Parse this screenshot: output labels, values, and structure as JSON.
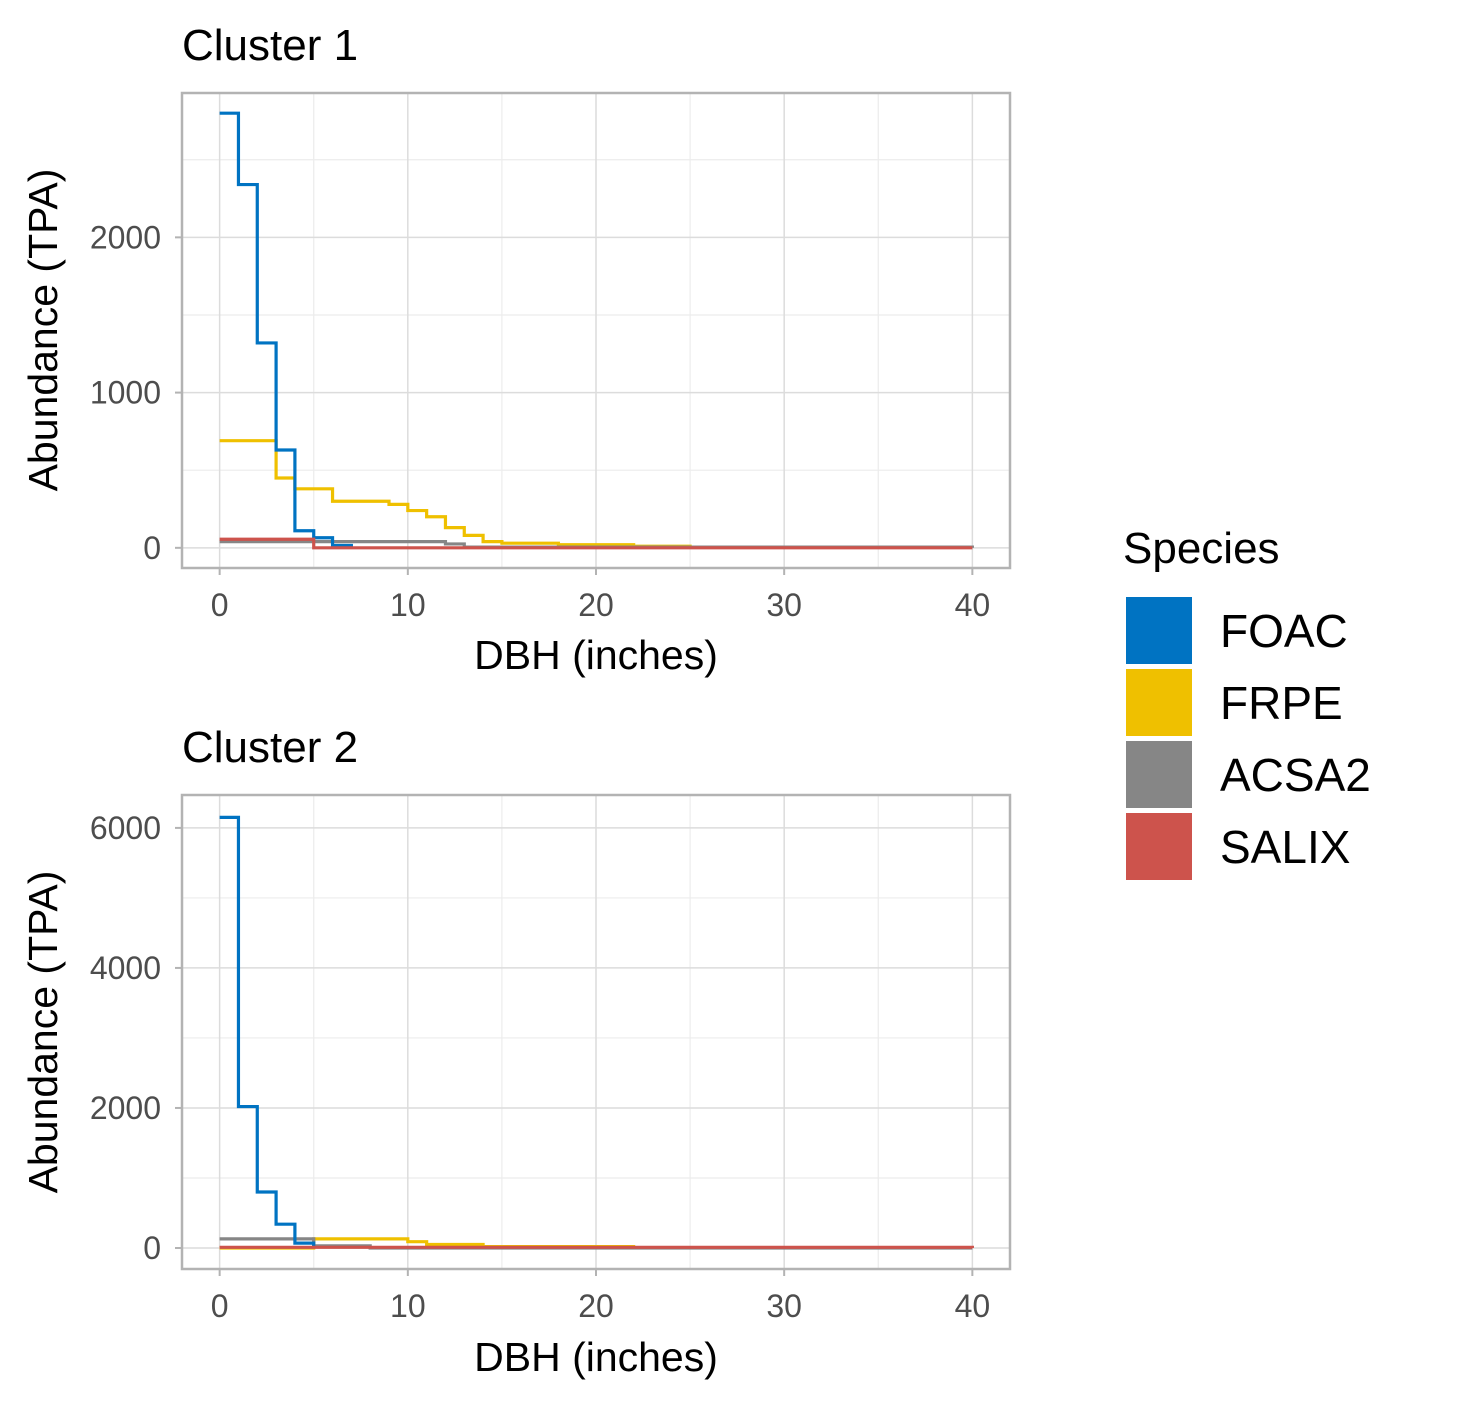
{
  "chart_data": [
    {
      "type": "line",
      "step": true,
      "title": "Cluster 1",
      "xlabel": "DBH (inches)",
      "ylabel": "Abundance (TPA)",
      "xlim": [
        -2,
        42
      ],
      "ylim": [
        -130,
        2930
      ],
      "xticks": [
        0,
        10,
        20,
        30,
        40
      ],
      "yticks": [
        0,
        1000,
        2000
      ],
      "grid": true,
      "series": [
        {
          "name": "FRPE",
          "color": "#EFC000",
          "x": [
            0,
            3,
            4,
            6,
            9,
            10,
            11,
            12,
            13,
            14,
            15,
            18,
            22,
            25
          ],
          "y": [
            690,
            450,
            380,
            300,
            280,
            240,
            200,
            130,
            80,
            40,
            30,
            20,
            10,
            0
          ]
        },
        {
          "name": "ACSA2",
          "color": "#868686",
          "x": [
            0,
            5,
            12,
            13,
            40
          ],
          "y": [
            40,
            40,
            25,
            5,
            0
          ]
        },
        {
          "name": "FOAC",
          "color": "#0073C2",
          "x": [
            0,
            1,
            2,
            3,
            4,
            5,
            6,
            7
          ],
          "y": [
            2800,
            2340,
            1320,
            630,
            110,
            65,
            15,
            0
          ]
        },
        {
          "name": "SALIX",
          "color": "#CD534C",
          "x": [
            0,
            5,
            40
          ],
          "y": [
            55,
            0,
            0
          ]
        }
      ]
    },
    {
      "type": "line",
      "step": true,
      "title": "Cluster 2",
      "xlabel": "DBH (inches)",
      "ylabel": "Abundance (TPA)",
      "xlim": [
        -2,
        42
      ],
      "ylim": [
        -300,
        6470
      ],
      "xticks": [
        0,
        10,
        20,
        30,
        40
      ],
      "yticks": [
        0,
        2000,
        4000,
        6000
      ],
      "grid": true,
      "series": [
        {
          "name": "FRPE",
          "color": "#EFC000",
          "x": [
            0,
            5,
            10,
            11,
            14,
            22
          ],
          "y": [
            0,
            130,
            90,
            50,
            20,
            0
          ]
        },
        {
          "name": "ACSA2",
          "color": "#868686",
          "x": [
            0,
            5,
            8,
            40
          ],
          "y": [
            130,
            30,
            0,
            0
          ]
        },
        {
          "name": "FOAC",
          "color": "#0073C2",
          "x": [
            0,
            1,
            2,
            3,
            4,
            5
          ],
          "y": [
            6150,
            2020,
            800,
            340,
            70,
            0
          ]
        },
        {
          "name": "SALIX",
          "color": "#CD534C",
          "x": [
            0,
            40
          ],
          "y": [
            10,
            0
          ]
        }
      ]
    }
  ],
  "legend": {
    "title": "Species",
    "placement": "right",
    "items": [
      {
        "label": "FOAC",
        "color": "#0073C2"
      },
      {
        "label": "FRPE",
        "color": "#EFC000"
      },
      {
        "label": "ACSA2",
        "color": "#868686"
      },
      {
        "label": "SALIX",
        "color": "#CD534C"
      }
    ]
  }
}
